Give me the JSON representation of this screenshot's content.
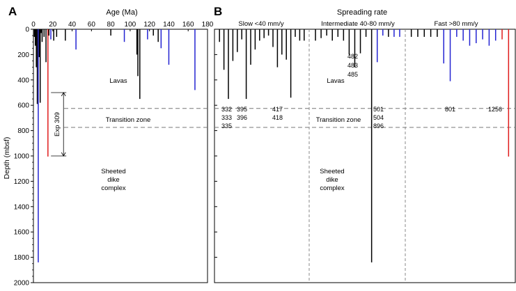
{
  "figure": {
    "depth_axis": {
      "label": "Depth (mbsf)",
      "ticks": [
        0,
        200,
        400,
        600,
        800,
        1000,
        1200,
        1400,
        1600,
        1800,
        2000
      ],
      "range": [
        0,
        2000
      ]
    },
    "transition_zone_depths": [
      625,
      775
    ],
    "labels": {
      "lavas": "Lavas",
      "transition": "Transition zone",
      "sheeted": [
        "Sheeted",
        "dike",
        "complex"
      ]
    }
  },
  "chart_data": [
    {
      "type": "bar",
      "panel_letter": "A",
      "title": "Age (Ma)",
      "xlabel": "Age (Ma)",
      "ylabel": "Depth (mbsf)",
      "xlim": [
        0,
        180
      ],
      "ylim": [
        2000,
        0
      ],
      "x_ticks": [
        0,
        20,
        40,
        60,
        80,
        100,
        120,
        140,
        160,
        180
      ],
      "holes": [
        {
          "x": 1,
          "depth": 60,
          "color": "black"
        },
        {
          "x": 2,
          "depth": 130,
          "color": "black"
        },
        {
          "x": 3,
          "depth": 300,
          "color": "black"
        },
        {
          "x": 4,
          "depth": 590,
          "color": "black"
        },
        {
          "x": 5,
          "depth": 1840,
          "color": "blue"
        },
        {
          "x": 6,
          "depth": 220,
          "color": "black"
        },
        {
          "x": 7,
          "depth": 580,
          "color": "black"
        },
        {
          "x": 8,
          "depth": 30,
          "color": "black"
        },
        {
          "x": 9,
          "depth": 100,
          "color": "black"
        },
        {
          "x": 11,
          "depth": 60,
          "color": "black"
        },
        {
          "x": 13,
          "depth": 260,
          "color": "black"
        },
        {
          "x": 15,
          "depth": 1005,
          "color": "red"
        },
        {
          "x": 16,
          "depth": 50,
          "color": "black"
        },
        {
          "x": 18,
          "depth": 80,
          "color": "blue"
        },
        {
          "x": 21,
          "depth": 90,
          "color": "black"
        },
        {
          "x": 24,
          "depth": 60,
          "color": "black"
        },
        {
          "x": 33,
          "depth": 90,
          "color": "black"
        },
        {
          "x": 44,
          "depth": 160,
          "color": "blue"
        },
        {
          "x": 80,
          "depth": 50,
          "color": "black"
        },
        {
          "x": 94,
          "depth": 100,
          "color": "blue"
        },
        {
          "x": 107,
          "depth": 200,
          "color": "black"
        },
        {
          "x": 108,
          "depth": 370,
          "color": "black"
        },
        {
          "x": 110,
          "depth": 550,
          "color": "black"
        },
        {
          "x": 118,
          "depth": 80,
          "color": "blue"
        },
        {
          "x": 124,
          "depth": 50,
          "color": "black"
        },
        {
          "x": 129,
          "depth": 100,
          "color": "black"
        },
        {
          "x": 132,
          "depth": 150,
          "color": "blue"
        },
        {
          "x": 140,
          "depth": 280,
          "color": "blue"
        },
        {
          "x": 167,
          "depth": 480,
          "color": "blue"
        }
      ],
      "annotation": {
        "text": "Exp 309",
        "x": 16,
        "depth_top": 500,
        "depth_bottom": 1000
      }
    },
    {
      "type": "bar",
      "panel_letter": "B",
      "title": "Spreading rate",
      "ylabel": "Depth (mbsf)",
      "ylim": [
        2000,
        0
      ],
      "groups": [
        {
          "label": "Slow <40 mm/y",
          "holes": [
            {
              "depth": 100,
              "color": "black"
            },
            {
              "depth": 320,
              "color": "black"
            },
            {
              "depth": 550,
              "color": "black"
            },
            {
              "depth": 250,
              "color": "black"
            },
            {
              "depth": 180,
              "color": "black"
            },
            {
              "depth": 80,
              "color": "black"
            },
            {
              "depth": 550,
              "color": "black"
            },
            {
              "depth": 280,
              "color": "black"
            },
            {
              "depth": 160,
              "color": "black"
            },
            {
              "depth": 90,
              "color": "black"
            },
            {
              "depth": 70,
              "color": "black"
            },
            {
              "depth": 50,
              "color": "black"
            },
            {
              "depth": 140,
              "color": "black"
            },
            {
              "depth": 300,
              "color": "black"
            },
            {
              "depth": 200,
              "color": "black"
            },
            {
              "depth": 240,
              "color": "black"
            },
            {
              "depth": 540,
              "color": "black"
            },
            {
              "depth": 60,
              "color": "black"
            },
            {
              "depth": 90,
              "color": "black"
            },
            {
              "depth": 90,
              "color": "black"
            }
          ],
          "hole_labels": [
            [
              "332",
              "333",
              "335"
            ],
            [
              "395",
              "396"
            ],
            [
              "417",
              "418"
            ]
          ]
        },
        {
          "label": "Intermediate 40-80 mm/y",
          "holes": [
            {
              "depth": 90,
              "color": "black"
            },
            {
              "depth": 70,
              "color": "black"
            },
            {
              "depth": 50,
              "color": "black"
            },
            {
              "depth": 90,
              "color": "black"
            },
            {
              "depth": 60,
              "color": "black"
            },
            {
              "depth": 90,
              "color": "black"
            },
            {
              "depth": 200,
              "color": "black"
            },
            {
              "depth": 300,
              "color": "black"
            },
            {
              "depth": 190,
              "color": "black"
            },
            {
              "depth": 60,
              "color": "black"
            },
            {
              "depth": 1840,
              "color": "black"
            },
            {
              "depth": 260,
              "color": "blue"
            },
            {
              "depth": 50,
              "color": "blue"
            },
            {
              "depth": 60,
              "color": "black"
            },
            {
              "depth": 60,
              "color": "blue"
            },
            {
              "depth": 60,
              "color": "blue"
            }
          ],
          "hole_labels": [
            [
              "482",
              "483",
              "485"
            ],
            [
              "501",
              "504",
              "896"
            ]
          ]
        },
        {
          "label": "Fast >80 mm/y",
          "holes": [
            {
              "depth": 60,
              "color": "black"
            },
            {
              "depth": 60,
              "color": "black"
            },
            {
              "depth": 60,
              "color": "black"
            },
            {
              "depth": 60,
              "color": "black"
            },
            {
              "depth": 60,
              "color": "black"
            },
            {
              "depth": 270,
              "color": "blue"
            },
            {
              "depth": 410,
              "color": "blue"
            },
            {
              "depth": 60,
              "color": "blue"
            },
            {
              "depth": 90,
              "color": "blue"
            },
            {
              "depth": 130,
              "color": "blue"
            },
            {
              "depth": 110,
              "color": "blue"
            },
            {
              "depth": 80,
              "color": "blue"
            },
            {
              "depth": 130,
              "color": "blue"
            },
            {
              "depth": 90,
              "color": "blue"
            },
            {
              "depth": 80,
              "color": "red"
            },
            {
              "depth": 1005,
              "color": "red"
            }
          ],
          "hole_labels": [
            [
              "801"
            ],
            [
              "1256"
            ]
          ]
        }
      ]
    }
  ]
}
